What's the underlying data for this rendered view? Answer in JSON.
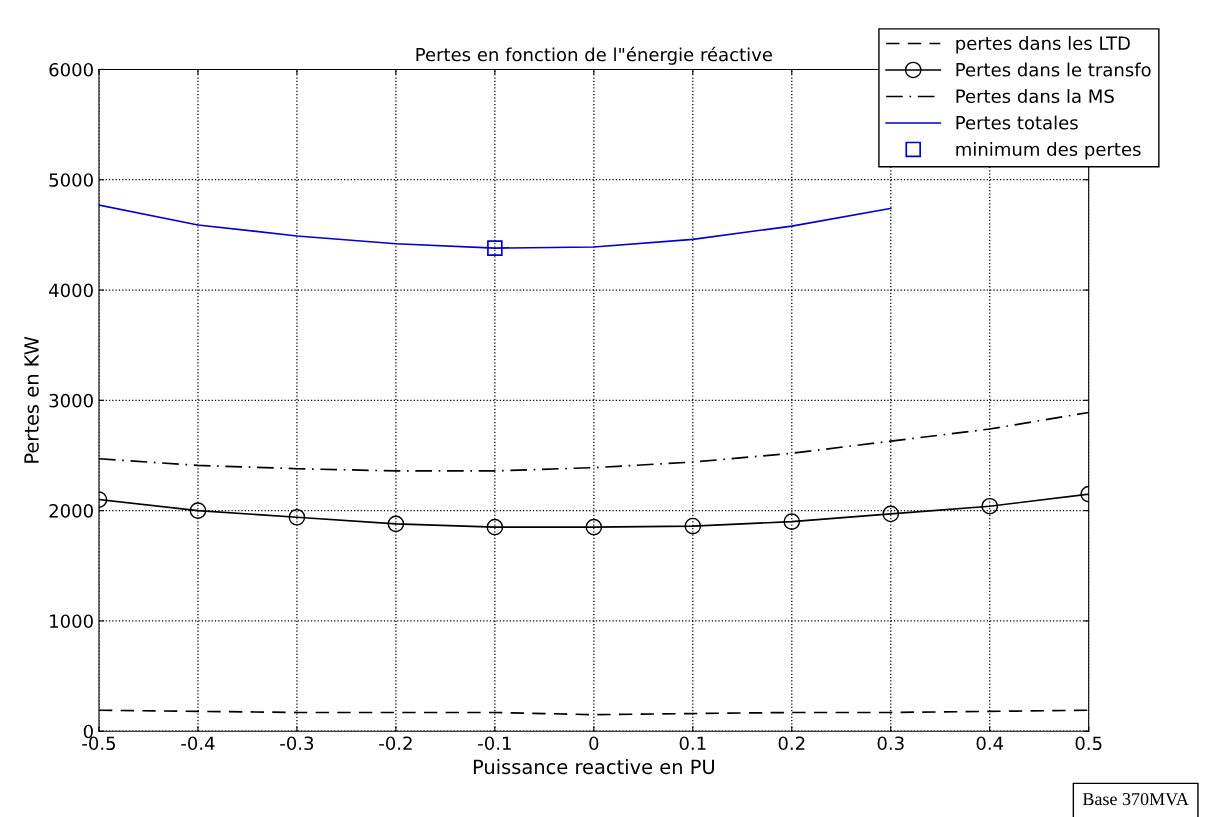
{
  "chart_data": {
    "type": "line",
    "title": "Pertes en fonction de l\"énergie réactive",
    "xlabel": "Puissance reactive en PU",
    "ylabel": "Pertes en KW",
    "x": [
      -0.5,
      -0.4,
      -0.3,
      -0.2,
      -0.1,
      0,
      0.1,
      0.2,
      0.3,
      0.4,
      0.5
    ],
    "series": [
      {
        "name": "pertes dans les LTD",
        "color": "#000000",
        "line_style": "dashed",
        "marker": "none",
        "values": [
          190,
          180,
          170,
          170,
          170,
          150,
          160,
          170,
          170,
          180,
          190
        ]
      },
      {
        "name": "Pertes dans le transfo",
        "color": "#000000",
        "line_style": "solid",
        "marker": "circle",
        "values": [
          2100,
          2000,
          1940,
          1880,
          1850,
          1850,
          1860,
          1900,
          1970,
          2040,
          2150
        ]
      },
      {
        "name": "Pertes dans la MS",
        "color": "#000000",
        "line_style": "dashdot",
        "marker": "none",
        "values": [
          2470,
          2410,
          2380,
          2360,
          2360,
          2390,
          2440,
          2520,
          2630,
          2740,
          2890
        ]
      },
      {
        "name": "Pertes totales",
        "color": "#0000cc",
        "line_style": "solid",
        "marker": "none",
        "values": [
          4770,
          4590,
          4490,
          4420,
          4380,
          4390,
          4460,
          4580,
          4740,
          null,
          null
        ]
      },
      {
        "name": "minimum des pertes",
        "type": "scatter",
        "color": "#0000cc",
        "marker": "square",
        "x": [
          -0.1
        ],
        "values": [
          4380
        ]
      }
    ],
    "xlim": [
      -0.5,
      0.5
    ],
    "xticks": [
      -0.5,
      -0.4,
      -0.3,
      -0.2,
      -0.1,
      0,
      0.1,
      0.2,
      0.3,
      0.4,
      0.5
    ],
    "ylim": [
      0,
      6000
    ],
    "yticks": [
      0,
      1000,
      2000,
      3000,
      4000,
      5000,
      6000
    ],
    "grid": true,
    "legend": "top right",
    "annotations": [
      "Base 370MVA"
    ]
  }
}
